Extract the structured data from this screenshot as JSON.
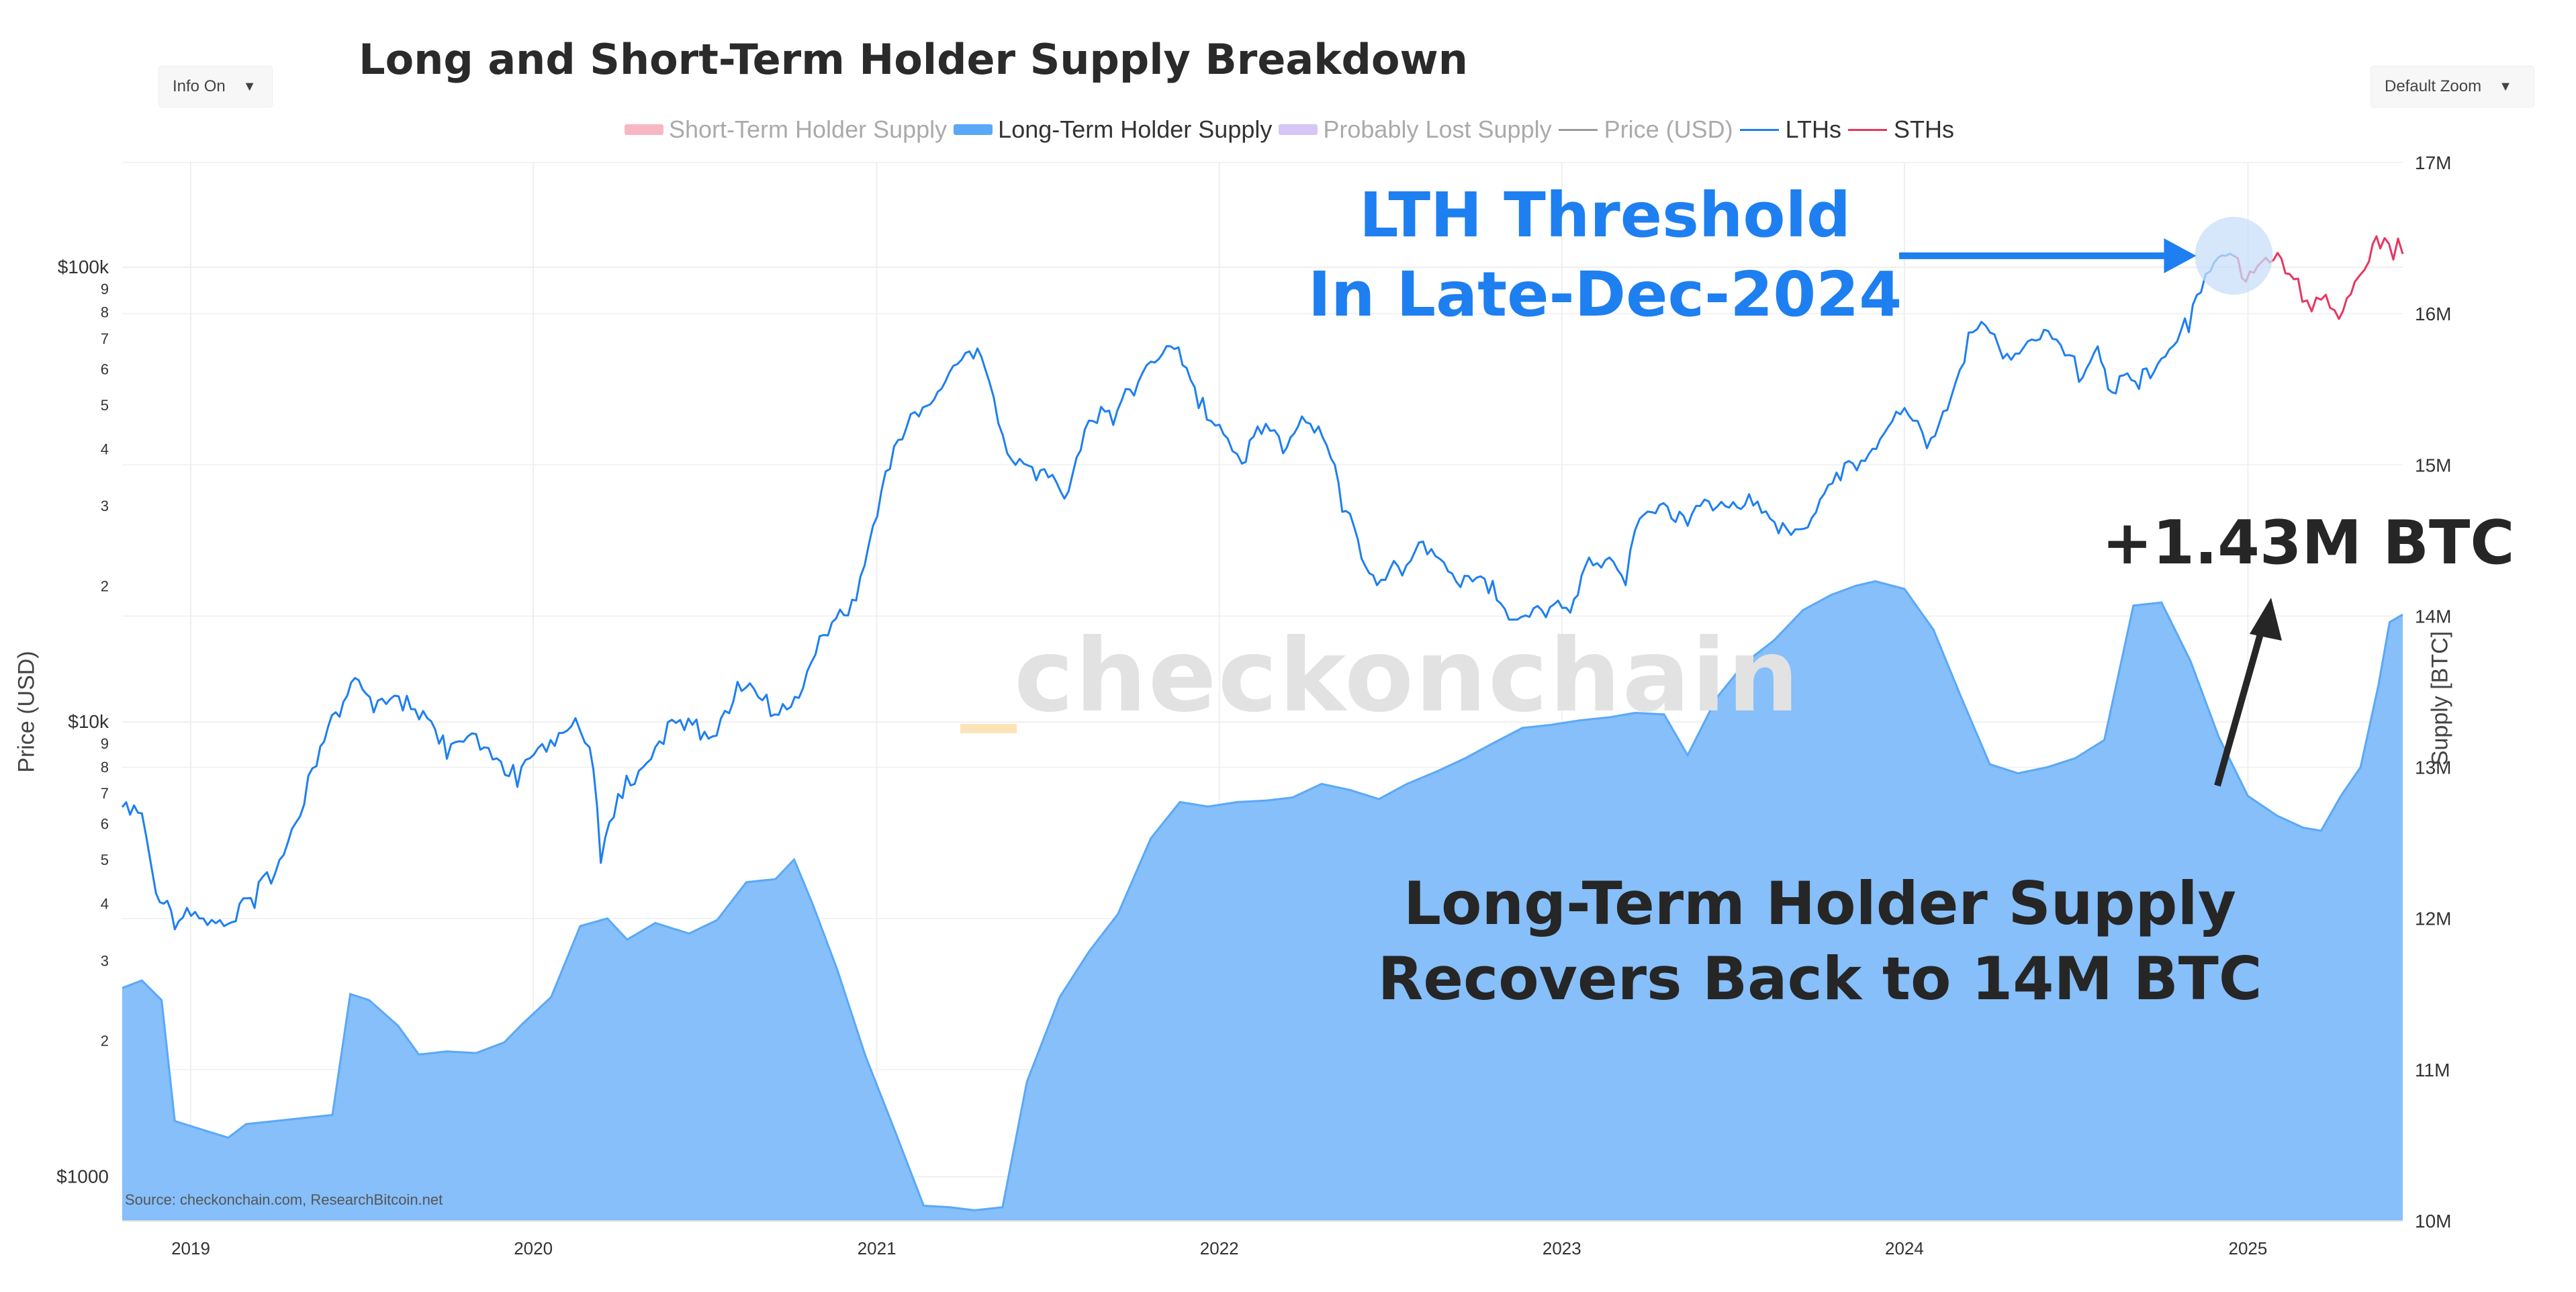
{
  "header": {
    "title": "Long and Short-Term Holder Supply Breakdown",
    "info_dropdown": "Info On",
    "zoom_dropdown": "Default Zoom"
  },
  "legend": [
    {
      "label": "Short-Term Holder Supply",
      "color": "#f7b8c4",
      "kind": "area",
      "active": false
    },
    {
      "label": "Long-Term Holder Supply",
      "color": "#5aa8f8",
      "kind": "area",
      "active": true
    },
    {
      "label": "Probably Lost Supply",
      "color": "#d6c6f5",
      "kind": "area",
      "active": false
    },
    {
      "label": "Price (USD)",
      "color": "#9a9a9a",
      "kind": "line",
      "active": false
    },
    {
      "label": "LTHs",
      "color": "#1e7ff0",
      "kind": "line",
      "active": true
    },
    {
      "label": "STHs",
      "color": "#e8365f",
      "kind": "line",
      "active": true
    }
  ],
  "annotations": {
    "lth_threshold_line1": "LTH Threshold",
    "lth_threshold_line2": "In Late-Dec-2024",
    "gain": "+1.43M BTC",
    "recover_line1": "Long-Term Holder Supply",
    "recover_line2": "Recovers Back to 14M BTC"
  },
  "watermark": "checkonchain",
  "source": "Source: checkonchain.com, ResearchBitcoin.net",
  "colors": {
    "lth_supply_fill": "#86bff9",
    "lth_supply_edge": "#5aa8f8",
    "lth_price": "#1e7ff0",
    "sth_price": "#e8365f",
    "grid": "#efefef",
    "highlight_circle": "#c8defa"
  },
  "chart_data": {
    "type": "area",
    "title": "Long and Short-Term Holder Supply Breakdown",
    "x_tick_labels": [
      "2019",
      "2020",
      "2021",
      "2022",
      "2023",
      "2024",
      "2025"
    ],
    "x_range": [
      "2018-10-20",
      "2025-06-15"
    ],
    "y_left": {
      "label": "Price (USD)",
      "scale": "log",
      "range": [
        800,
        170000
      ],
      "tick_labels": [
        {
          "v": 1000,
          "t": "$1000"
        },
        {
          "v": 2000,
          "t": "2"
        },
        {
          "v": 3000,
          "t": "3"
        },
        {
          "v": 4000,
          "t": "4"
        },
        {
          "v": 5000,
          "t": "5"
        },
        {
          "v": 6000,
          "t": "6"
        },
        {
          "v": 7000,
          "t": "7"
        },
        {
          "v": 8000,
          "t": "8"
        },
        {
          "v": 9000,
          "t": "9"
        },
        {
          "v": 10000,
          "t": "$10k"
        },
        {
          "v": 20000,
          "t": "2"
        },
        {
          "v": 30000,
          "t": "3"
        },
        {
          "v": 40000,
          "t": "4"
        },
        {
          "v": 50000,
          "t": "5"
        },
        {
          "v": 60000,
          "t": "6"
        },
        {
          "v": 70000,
          "t": "7"
        },
        {
          "v": 80000,
          "t": "8"
        },
        {
          "v": 90000,
          "t": "9"
        },
        {
          "v": 100000,
          "t": "$100k"
        }
      ]
    },
    "y_right": {
      "label": "Supply [BTC]",
      "scale": "linear",
      "range": [
        10000000,
        17000000
      ],
      "tick_labels": [
        {
          "v": 10000000,
          "t": "10M"
        },
        {
          "v": 11000000,
          "t": "11M"
        },
        {
          "v": 12000000,
          "t": "12M"
        },
        {
          "v": 13000000,
          "t": "13M"
        },
        {
          "v": 14000000,
          "t": "14M"
        },
        {
          "v": 15000000,
          "t": "15M"
        },
        {
          "v": 16000000,
          "t": "16M"
        },
        {
          "v": 17000000,
          "t": "17M"
        }
      ]
    },
    "series": [
      {
        "name": "Long-Term Holder Supply",
        "axis": "right",
        "style": "area",
        "points": [
          [
            "2018-10-20",
            11540000
          ],
          [
            "2018-11-10",
            11590000
          ],
          [
            "2018-12-01",
            11460000
          ],
          [
            "2018-12-15",
            10660000
          ],
          [
            "2019-01-20",
            10590000
          ],
          [
            "2019-02-10",
            10550000
          ],
          [
            "2019-03-01",
            10640000
          ],
          [
            "2019-04-01",
            10660000
          ],
          [
            "2019-05-01",
            10680000
          ],
          [
            "2019-06-01",
            10700000
          ],
          [
            "2019-06-20",
            11500000
          ],
          [
            "2019-07-10",
            11460000
          ],
          [
            "2019-08-10",
            11290000
          ],
          [
            "2019-09-01",
            11100000
          ],
          [
            "2019-10-01",
            11120000
          ],
          [
            "2019-11-01",
            11110000
          ],
          [
            "2019-12-01",
            11180000
          ],
          [
            "2019-12-20",
            11300000
          ],
          [
            "2020-01-20",
            11480000
          ],
          [
            "2020-02-20",
            11950000
          ],
          [
            "2020-03-20",
            12000000
          ],
          [
            "2020-04-10",
            11860000
          ],
          [
            "2020-05-10",
            11970000
          ],
          [
            "2020-06-15",
            11900000
          ],
          [
            "2020-07-15",
            11990000
          ],
          [
            "2020-08-15",
            12240000
          ],
          [
            "2020-09-15",
            12260000
          ],
          [
            "2020-10-05",
            12390000
          ],
          [
            "2020-10-25",
            12090000
          ],
          [
            "2020-11-20",
            11660000
          ],
          [
            "2020-12-20",
            11090000
          ],
          [
            "2021-01-20",
            10600000
          ],
          [
            "2021-02-20",
            10100000
          ],
          [
            "2021-03-20",
            10090000
          ],
          [
            "2021-04-15",
            10070000
          ],
          [
            "2021-05-15",
            10090000
          ],
          [
            "2021-06-10",
            10920000
          ],
          [
            "2021-07-15",
            11480000
          ],
          [
            "2021-08-15",
            11780000
          ],
          [
            "2021-09-15",
            12030000
          ],
          [
            "2021-10-20",
            12530000
          ],
          [
            "2021-11-20",
            12770000
          ],
          [
            "2021-12-20",
            12740000
          ],
          [
            "2022-01-20",
            12770000
          ],
          [
            "2022-02-20",
            12780000
          ],
          [
            "2022-03-20",
            12800000
          ],
          [
            "2022-04-20",
            12890000
          ],
          [
            "2022-05-20",
            12850000
          ],
          [
            "2022-06-20",
            12790000
          ],
          [
            "2022-07-20",
            12890000
          ],
          [
            "2022-08-20",
            12970000
          ],
          [
            "2022-09-20",
            13060000
          ],
          [
            "2022-10-20",
            13160000
          ],
          [
            "2022-11-20",
            13260000
          ],
          [
            "2022-12-20",
            13280000
          ],
          [
            "2023-01-20",
            13310000
          ],
          [
            "2023-02-20",
            13330000
          ],
          [
            "2023-03-20",
            13360000
          ],
          [
            "2023-04-20",
            13350000
          ],
          [
            "2023-05-15",
            13080000
          ],
          [
            "2023-06-15",
            13460000
          ],
          [
            "2023-07-15",
            13690000
          ],
          [
            "2023-08-15",
            13840000
          ],
          [
            "2023-09-15",
            14040000
          ],
          [
            "2023-10-15",
            14140000
          ],
          [
            "2023-11-10",
            14200000
          ],
          [
            "2023-12-01",
            14230000
          ],
          [
            "2024-01-01",
            14180000
          ],
          [
            "2024-02-01",
            13910000
          ],
          [
            "2024-03-01",
            13470000
          ],
          [
            "2024-04-01",
            13020000
          ],
          [
            "2024-05-01",
            12960000
          ],
          [
            "2024-06-01",
            13000000
          ],
          [
            "2024-07-01",
            13060000
          ],
          [
            "2024-08-01",
            13180000
          ],
          [
            "2024-09-01",
            14070000
          ],
          [
            "2024-10-01",
            14090000
          ],
          [
            "2024-11-01",
            13700000
          ],
          [
            "2024-12-01",
            13200000
          ],
          [
            "2025-01-01",
            12810000
          ],
          [
            "2025-02-01",
            12680000
          ],
          [
            "2025-03-01",
            12600000
          ],
          [
            "2025-03-20",
            12580000
          ],
          [
            "2025-04-10",
            12810000
          ],
          [
            "2025-05-01",
            13000000
          ],
          [
            "2025-05-20",
            13540000
          ],
          [
            "2025-06-01",
            13960000
          ],
          [
            "2025-06-15",
            14010000
          ]
        ]
      },
      {
        "name": "LTHs",
        "axis": "left",
        "style": "line",
        "points": [
          [
            "2018-10-20",
            6500
          ],
          [
            "2018-11-10",
            6300
          ],
          [
            "2018-11-25",
            4200
          ],
          [
            "2018-12-15",
            3500
          ],
          [
            "2019-01-10",
            3700
          ],
          [
            "2019-02-10",
            3600
          ],
          [
            "2019-03-10",
            3900
          ],
          [
            "2019-04-10",
            5100
          ],
          [
            "2019-05-15",
            8000
          ],
          [
            "2019-06-25",
            12500
          ],
          [
            "2019-07-15",
            10500
          ],
          [
            "2019-08-15",
            10600
          ],
          [
            "2019-09-10",
            10200
          ],
          [
            "2019-10-01",
            8300
          ],
          [
            "2019-11-10",
            8800
          ],
          [
            "2019-12-15",
            7200
          ],
          [
            "2020-01-15",
            8600
          ],
          [
            "2020-02-15",
            10200
          ],
          [
            "2020-03-01",
            8800
          ],
          [
            "2020-03-13",
            4900
          ],
          [
            "2020-04-05",
            6800
          ],
          [
            "2020-05-10",
            8800
          ],
          [
            "2020-06-10",
            9600
          ],
          [
            "2020-07-10",
            9300
          ],
          [
            "2020-08-10",
            11700
          ],
          [
            "2020-09-10",
            10300
          ],
          [
            "2020-10-10",
            11300
          ],
          [
            "2020-11-10",
            15500
          ],
          [
            "2020-12-10",
            18500
          ],
          [
            "2020-12-28",
            27000
          ],
          [
            "2021-01-15",
            36000
          ],
          [
            "2021-02-15",
            47000
          ],
          [
            "2021-03-15",
            56000
          ],
          [
            "2021-04-14",
            63000
          ],
          [
            "2021-05-01",
            56000
          ],
          [
            "2021-05-20",
            39000
          ],
          [
            "2021-06-20",
            34000
          ],
          [
            "2021-07-20",
            31000
          ],
          [
            "2021-08-15",
            46000
          ],
          [
            "2021-09-10",
            45000
          ],
          [
            "2021-10-20",
            62000
          ],
          [
            "2021-11-10",
            67000
          ],
          [
            "2021-12-10",
            49000
          ],
          [
            "2022-01-10",
            42000
          ],
          [
            "2022-01-25",
            37000
          ],
          [
            "2022-02-15",
            43000
          ],
          [
            "2022-03-10",
            39000
          ],
          [
            "2022-03-30",
            47000
          ],
          [
            "2022-04-30",
            38000
          ],
          [
            "2022-05-12",
            29000
          ],
          [
            "2022-06-18",
            20000
          ],
          [
            "2022-07-15",
            21000
          ],
          [
            "2022-08-15",
            24000
          ],
          [
            "2022-09-15",
            19800
          ],
          [
            "2022-10-15",
            19200
          ],
          [
            "2022-11-10",
            16800
          ],
          [
            "2022-12-15",
            17000
          ],
          [
            "2023-01-10",
            17400
          ],
          [
            "2023-01-30",
            23000
          ],
          [
            "2023-03-10",
            20000
          ],
          [
            "2023-03-25",
            28000
          ],
          [
            "2023-04-15",
            30000
          ],
          [
            "2023-05-15",
            27000
          ],
          [
            "2023-06-20",
            30500
          ],
          [
            "2023-07-15",
            30000
          ],
          [
            "2023-08-20",
            26000
          ],
          [
            "2023-09-20",
            26800
          ],
          [
            "2023-10-25",
            34000
          ],
          [
            "2023-11-20",
            37500
          ],
          [
            "2023-12-10",
            43000
          ],
          [
            "2024-01-10",
            46000
          ],
          [
            "2024-01-25",
            40000
          ],
          [
            "2024-02-20",
            52000
          ],
          [
            "2024-03-14",
            72000
          ],
          [
            "2024-04-15",
            63000
          ],
          [
            "2024-05-20",
            69000
          ],
          [
            "2024-06-20",
            64000
          ],
          [
            "2024-07-05",
            56000
          ],
          [
            "2024-07-25",
            67000
          ],
          [
            "2024-08-05",
            54000
          ],
          [
            "2024-09-07",
            54000
          ],
          [
            "2024-10-01",
            63000
          ],
          [
            "2024-10-30",
            72000
          ],
          [
            "2024-11-12",
            88000
          ],
          [
            "2024-11-22",
            98000
          ],
          [
            "2024-12-17",
            106000
          ]
        ]
      },
      {
        "name": "STHs",
        "axis": "left",
        "style": "line",
        "points": [
          [
            "2024-12-17",
            106000
          ],
          [
            "2024-12-30",
            93000
          ],
          [
            "2025-01-20",
            105000
          ],
          [
            "2025-02-10",
            97000
          ],
          [
            "2025-02-28",
            84000
          ],
          [
            "2025-03-10",
            80000
          ],
          [
            "2025-03-25",
            87000
          ],
          [
            "2025-04-08",
            77000
          ],
          [
            "2025-04-25",
            93000
          ],
          [
            "2025-05-10",
            103000
          ],
          [
            "2025-05-22",
            110000
          ],
          [
            "2025-06-05",
            104000
          ],
          [
            "2025-06-15",
            107000
          ]
        ]
      }
    ]
  }
}
